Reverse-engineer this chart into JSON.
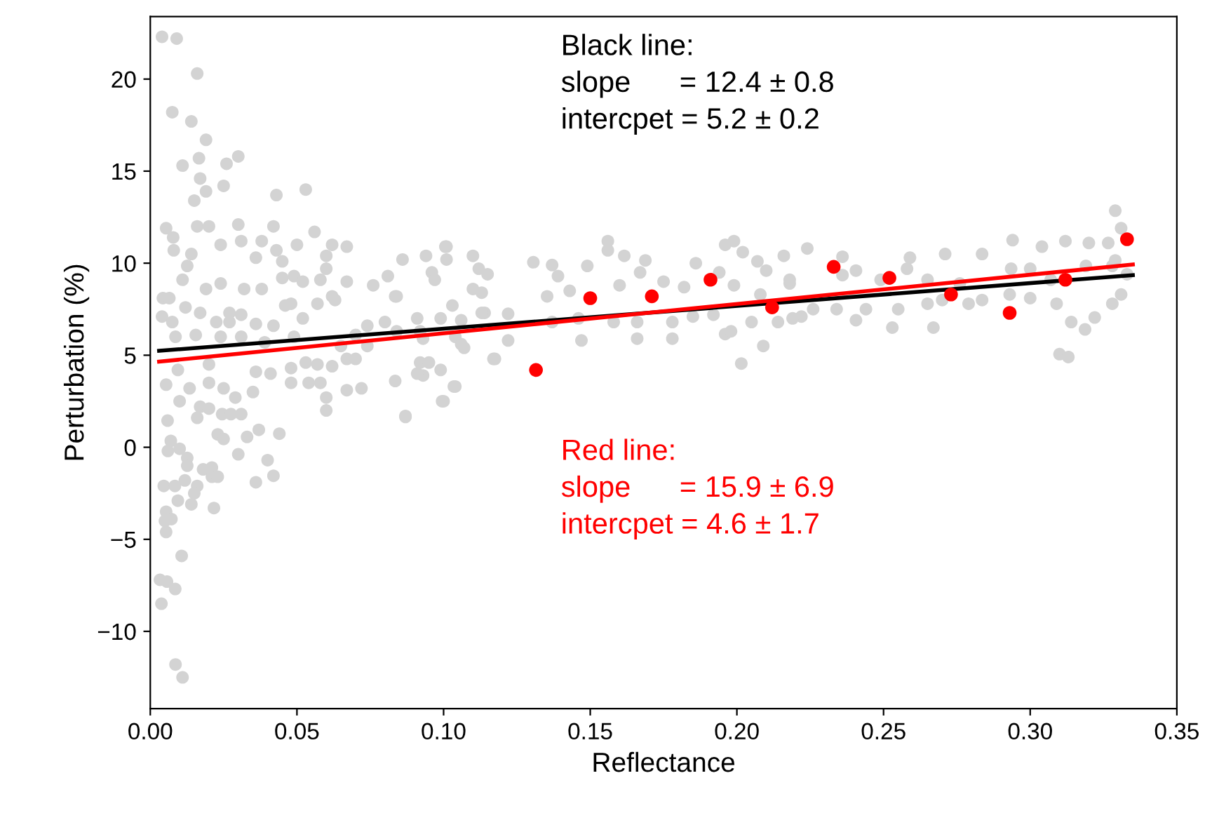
{
  "chart_data": {
    "type": "scatter",
    "xlabel": "Reflectance",
    "ylabel": "Perturbation (%)",
    "xlim": [
      0,
      0.35
    ],
    "ylim": [
      -14.2,
      23.4
    ],
    "xticks": [
      {
        "value": 0,
        "label": "0.00"
      },
      {
        "value": 0.05,
        "label": "0.05"
      },
      {
        "value": 0.1,
        "label": "0.10"
      },
      {
        "value": 0.15,
        "label": "0.15"
      },
      {
        "value": 0.2,
        "label": "0.20"
      },
      {
        "value": 0.25,
        "label": "0.25"
      },
      {
        "value": 0.3,
        "label": "0.30"
      },
      {
        "value": 0.35,
        "label": "0.35"
      }
    ],
    "yticks": [
      {
        "value": -10,
        "label": "−10"
      },
      {
        "value": -5,
        "label": "−5"
      },
      0,
      5,
      10,
      15,
      20
    ],
    "grid": false,
    "annotations": [
      "Black line:\nslope      = 12.4 ± 0.8\nintercpet = 5.2 ± 0.2",
      "Red line:\nslope      = 15.9 ± 6.9\nintercpet = 4.6 ± 1.7"
    ],
    "series": [
      {
        "marker": "circle",
        "color": "#d3d3d3",
        "x": [
          0.004,
          0.009,
          0.016,
          0.0075,
          0.014,
          0.019,
          0.011,
          0.0166,
          0.026,
          0.03,
          0.017,
          0.025,
          0.015,
          0.019,
          0.043,
          0.053,
          0.0054,
          0.0078,
          0.008,
          0.016,
          0.02,
          0.03,
          0.042,
          0.056,
          0.031,
          0.038,
          0.024,
          0.05,
          0.014,
          0.036,
          0.043,
          0.045,
          0.062,
          0.067,
          0.06,
          0.0126,
          0.011,
          0.019,
          0.024,
          0.032,
          0.038,
          0.045,
          0.049,
          0.052,
          0.058,
          0.06,
          0.067,
          0.086,
          0.094,
          0.101,
          0.101,
          0.11,
          0.112,
          0.081,
          0.076,
          0.096,
          0.11,
          0.113,
          0.0835,
          0.062,
          0.063,
          0.057,
          0.048,
          0.052,
          0.0043,
          0.0065,
          0.004,
          0.012,
          0.0075,
          0.017,
          0.0225,
          0.027,
          0.031,
          0.027,
          0.036,
          0.042,
          0.046,
          0.0086,
          0.0155,
          0.024,
          0.031,
          0.049,
          0.039,
          0.065,
          0.07,
          0.074,
          0.08,
          0.074,
          0.084,
          0.091,
          0.093,
          0.099,
          0.106,
          0.104,
          0.107,
          0.114,
          0.117,
          0.067,
          0.07,
          0.092,
          0.095,
          0.0054,
          0.0094,
          0.02,
          0.0134,
          0.02,
          0.025,
          0.029,
          0.035,
          0.036,
          0.041,
          0.048,
          0.048,
          0.053,
          0.054,
          0.058,
          0.057,
          0.062,
          0.06,
          0.067,
          0.072,
          0.0835,
          0.087,
          0.093,
          0.1,
          0.104,
          0.06,
          0.01,
          0.016,
          0.017,
          0.02,
          0.0245,
          0.0275,
          0.031,
          0.0059,
          0.006,
          0.007,
          0.01,
          0.023,
          0.025,
          0.033,
          0.037,
          0.044,
          0.03,
          0.0126,
          0.0126,
          0.0046,
          0.0084,
          0.0118,
          0.018,
          0.021,
          0.021,
          0.023,
          0.016,
          0.015,
          0.0094,
          0.014,
          0.0217,
          0.036,
          0.04,
          0.042,
          0.0054,
          0.005,
          0.0072,
          0.0054,
          0.0107,
          0.0033,
          0.0057,
          0.0085,
          0.0038,
          0.0086,
          0.011,
          0.1006,
          0.1306,
          0.137,
          0.139,
          0.149,
          0.156,
          0.156,
          0.1616,
          0.1688,
          0.167,
          0.186,
          0.196,
          0.199,
          0.202,
          0.194,
          0.207,
          0.21,
          0.216,
          0.224,
          0.097,
          0.115,
          0.1353,
          0.143,
          0.16,
          0.175,
          0.182,
          0.199,
          0.208,
          0.218,
          0.084,
          0.103,
          0.113,
          0.122,
          0.137,
          0.146,
          0.158,
          0.166,
          0.178,
          0.185,
          0.192,
          0.205,
          0.214,
          0.222,
          0.092,
          0.106,
          0.122,
          0.147,
          0.166,
          0.178,
          0.196,
          0.198,
          0.209,
          0.2015,
          0.1175,
          0.091,
          0.099,
          0.1035,
          0.0995,
          0.087,
          0.236,
          0.259,
          0.271,
          0.2836,
          0.294,
          0.304,
          0.312,
          0.32,
          0.3266,
          0.329,
          0.331,
          0.218,
          0.236,
          0.2406,
          0.249,
          0.258,
          0.265,
          0.276,
          0.2935,
          0.3,
          0.307,
          0.319,
          0.329,
          0.333,
          0.328,
          0.331,
          0.328,
          0.322,
          0.3187,
          0.314,
          0.309,
          0.3,
          0.293,
          0.2836,
          0.279,
          0.27,
          0.265,
          0.255,
          0.253,
          0.244,
          0.2406,
          0.234,
          0.226,
          0.219,
          0.267,
          0.31,
          0.313
        ],
        "values": [
          22.3,
          22.2,
          20.3,
          18.2,
          17.7,
          16.7,
          15.3,
          15.7,
          15.4,
          15.8,
          14.6,
          14.2,
          13.4,
          13.9,
          13.7,
          14.0,
          11.9,
          11.4,
          10.7,
          12.0,
          12.0,
          12.1,
          12.0,
          11.7,
          11.2,
          11.2,
          11.0,
          11.0,
          10.5,
          10.3,
          10.7,
          10.1,
          11.0,
          10.9,
          10.4,
          9.85,
          9.1,
          8.6,
          8.9,
          8.6,
          8.6,
          9.2,
          9.3,
          9.0,
          9.1,
          9.7,
          9.0,
          10.2,
          10.4,
          10.9,
          10.2,
          10.4,
          9.7,
          9.3,
          8.8,
          9.5,
          8.6,
          8.4,
          8.2,
          8.2,
          8.0,
          7.8,
          7.8,
          7.0,
          8.1,
          8.1,
          7.1,
          7.6,
          6.8,
          7.3,
          6.8,
          7.3,
          7.2,
          6.8,
          6.7,
          6.6,
          7.7,
          6.0,
          6.1,
          6.0,
          6.0,
          6.0,
          5.7,
          5.5,
          6.1,
          6.6,
          6.8,
          5.5,
          6.3,
          7.0,
          5.9,
          7.0,
          6.9,
          6.0,
          5.4,
          7.3,
          4.8,
          4.8,
          4.8,
          4.6,
          4.6,
          3.4,
          4.2,
          4.5,
          3.2,
          3.5,
          3.2,
          2.7,
          3.0,
          4.1,
          4.0,
          4.3,
          3.5,
          4.6,
          3.5,
          3.5,
          4.5,
          4.4,
          2.7,
          3.1,
          3.2,
          3.6,
          1.7,
          3.9,
          2.5,
          3.3,
          2.0,
          2.5,
          1.6,
          2.2,
          2.1,
          1.8,
          1.8,
          1.8,
          1.45,
          -0.2,
          0.35,
          -0.08,
          0.7,
          0.45,
          0.56,
          0.95,
          0.74,
          -0.38,
          -0.58,
          -1.0,
          -2.1,
          -2.1,
          -1.8,
          -1.2,
          -1.1,
          -1.6,
          -1.6,
          -2.1,
          -2.5,
          -2.9,
          -3.1,
          -3.3,
          -1.9,
          -0.7,
          -1.55,
          -3.5,
          -4.0,
          -3.9,
          -4.6,
          -5.9,
          -7.2,
          -7.3,
          -7.7,
          -8.5,
          -11.8,
          -12.5,
          10.9,
          10.05,
          9.9,
          9.3,
          9.85,
          11.2,
          10.7,
          10.4,
          10.15,
          9.5,
          10.0,
          11.0,
          11.2,
          10.6,
          9.5,
          10.1,
          9.6,
          10.4,
          10.8,
          9.1,
          9.4,
          8.2,
          8.5,
          8.8,
          9.0,
          8.7,
          8.8,
          8.3,
          8.9,
          8.2,
          7.7,
          7.3,
          7.25,
          6.8,
          7.0,
          6.8,
          6.8,
          6.8,
          7.1,
          7.2,
          6.8,
          6.8,
          7.1,
          6.3,
          5.6,
          5.8,
          5.8,
          5.9,
          5.9,
          6.15,
          6.3,
          5.5,
          4.55,
          4.8,
          4.0,
          4.2,
          3.3,
          2.5,
          1.65,
          10.35,
          10.3,
          10.5,
          10.5,
          11.25,
          10.9,
          11.2,
          11.1,
          11.1,
          12.85,
          11.9,
          9.1,
          9.35,
          9.6,
          9.1,
          9.7,
          9.1,
          8.9,
          9.7,
          9.7,
          9.1,
          9.85,
          10.15,
          9.4,
          9.85,
          8.3,
          7.8,
          7.05,
          6.4,
          6.8,
          7.8,
          8.1,
          8.3,
          8.0,
          7.8,
          8.0,
          7.8,
          7.5,
          6.5,
          7.5,
          6.9,
          7.5,
          7.5,
          7.0,
          6.5,
          5.06,
          4.9
        ]
      },
      {
        "type": "line",
        "color": "#000000",
        "x": [
          0.003,
          0.335
        ],
        "values": [
          5.24,
          9.35
        ]
      },
      {
        "type": "line",
        "color": "#ff0000",
        "x": [
          0.003,
          0.335
        ],
        "values": [
          4.65,
          9.93
        ]
      },
      {
        "marker": "circle",
        "color": "#ff0000",
        "x": [
          0.1315,
          0.15,
          0.171,
          0.191,
          0.212,
          0.233,
          0.252,
          0.273,
          0.293,
          0.312,
          0.333
        ],
        "values": [
          4.2,
          8.1,
          8.2,
          9.1,
          7.6,
          9.8,
          9.2,
          8.3,
          7.3,
          9.1,
          11.3
        ]
      }
    ]
  }
}
